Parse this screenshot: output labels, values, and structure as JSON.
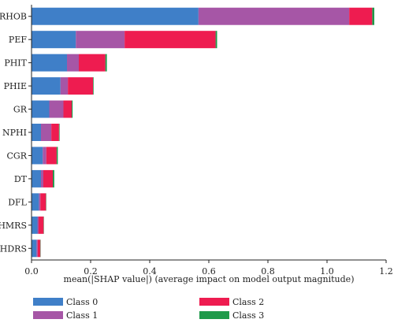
{
  "chart_data": {
    "type": "bar",
    "orientation": "horizontal",
    "stacked": true,
    "categories": [
      "RHOB",
      "PEF",
      "PHIT",
      "PHIE",
      "GR",
      "NPHI",
      "CGR",
      "DT",
      "DFL",
      "HMRS",
      "HDRS"
    ],
    "series": [
      {
        "name": "Class 0",
        "color": "#3f7fc8",
        "values": [
          0.565,
          0.15,
          0.12,
          0.098,
          0.06,
          0.032,
          0.038,
          0.032,
          0.025,
          0.02,
          0.017
        ]
      },
      {
        "name": "Class 1",
        "color": "#a656a6",
        "values": [
          0.51,
          0.165,
          0.04,
          0.025,
          0.048,
          0.035,
          0.012,
          0.008,
          0.005,
          0.004,
          0.004
        ]
      },
      {
        "name": "Class 2",
        "color": "#ee1c50",
        "values": [
          0.078,
          0.308,
          0.09,
          0.085,
          0.028,
          0.026,
          0.035,
          0.032,
          0.019,
          0.017,
          0.009
        ]
      },
      {
        "name": "Class 3",
        "color": "#1f9a4a",
        "values": [
          0.007,
          0.005,
          0.005,
          0.002,
          0.003,
          0.002,
          0.004,
          0.005,
          0.001,
          0.001,
          0.001
        ]
      }
    ],
    "xlabel": "mean(|SHAP value|) (average impact on model output magnitude)",
    "ylabel": "",
    "title": "",
    "xlim": [
      0,
      1.2
    ],
    "xticks": [
      "0.0",
      "0.2",
      "0.4",
      "0.6",
      "0.8",
      "1.0",
      "1.2"
    ],
    "grid": false,
    "legend_position": "bottom"
  }
}
